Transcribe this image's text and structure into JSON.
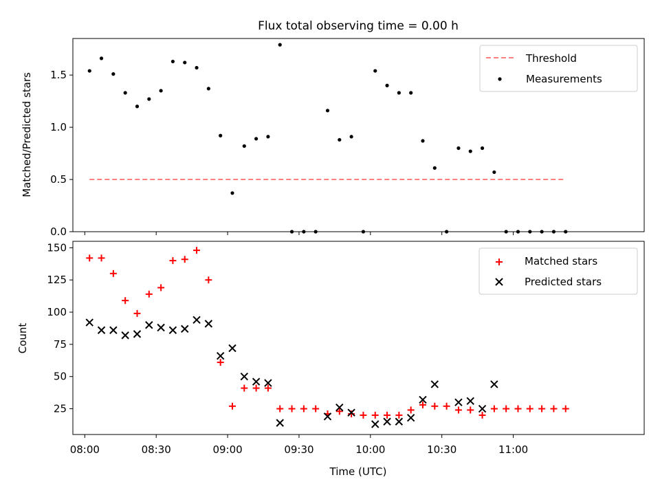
{
  "figure": {
    "title": "Flux total observing time = 0.00 h"
  },
  "chart_data": [
    {
      "type": "scatter",
      "title": "Flux total observing time = 0.00 h",
      "xlabel": "",
      "ylabel": "Matched/Predicted stars",
      "xlim": [
        "07:55",
        "11:55"
      ],
      "ylim": [
        0,
        1.85
      ],
      "yticks": [
        0.0,
        0.5,
        1.0,
        1.5
      ],
      "ytick_labels": [
        "0.0",
        "0.5",
        "1.0",
        "1.5"
      ],
      "legend": {
        "position": "upper right"
      },
      "series": [
        {
          "name": "Threshold",
          "kind": "dashed-line",
          "color": "#ff7f7f",
          "x": [
            "08:02",
            "11:22"
          ],
          "y": [
            0.5,
            0.5
          ]
        },
        {
          "name": "Measurements",
          "kind": "points",
          "color": "#000000",
          "x": [
            "08:02",
            "08:07",
            "08:12",
            "08:17",
            "08:22",
            "08:27",
            "08:32",
            "08:37",
            "08:42",
            "08:47",
            "08:52",
            "08:57",
            "09:02",
            "09:07",
            "09:12",
            "09:17",
            "09:22",
            "09:27",
            "09:32",
            "09:37",
            "09:42",
            "09:47",
            "09:52",
            "09:57",
            "10:02",
            "10:07",
            "10:12",
            "10:17",
            "10:22",
            "10:27",
            "10:32",
            "10:37",
            "10:42",
            "10:47",
            "10:52",
            "10:57",
            "11:02",
            "11:07",
            "11:12",
            "11:17",
            "11:22"
          ],
          "y": [
            1.54,
            1.66,
            1.51,
            1.33,
            1.2,
            1.27,
            1.35,
            1.63,
            1.62,
            1.57,
            1.37,
            0.92,
            0.37,
            0.82,
            0.89,
            0.91,
            1.79,
            0.0,
            0.0,
            0.0,
            1.16,
            0.88,
            0.91,
            0.0,
            1.54,
            1.4,
            1.33,
            1.33,
            0.87,
            0.61,
            0.0,
            0.8,
            0.77,
            0.8,
            0.57,
            0.0,
            0.0,
            0.0,
            0.0,
            0.0,
            0.0
          ]
        }
      ]
    },
    {
      "type": "scatter",
      "title": "",
      "xlabel": "Time (UTC)",
      "ylabel": "Count",
      "xlim": [
        "07:55",
        "11:55"
      ],
      "ylim": [
        5,
        155
      ],
      "yticks": [
        25,
        50,
        75,
        100,
        125,
        150
      ],
      "ytick_labels": [
        "25",
        "50",
        "75",
        "100",
        "125",
        "150"
      ],
      "xticks": [
        "08:00",
        "08:30",
        "09:00",
        "09:30",
        "10:00",
        "10:30",
        "11:00"
      ],
      "xtick_labels": [
        "08:00",
        "08:30",
        "09:00",
        "09:30",
        "10:00",
        "10:30",
        "11:00"
      ],
      "legend": {
        "position": "upper right"
      },
      "series": [
        {
          "name": "Matched stars",
          "marker": "plus",
          "color": "#ff0000",
          "x": [
            "08:02",
            "08:07",
            "08:12",
            "08:17",
            "08:22",
            "08:27",
            "08:32",
            "08:37",
            "08:42",
            "08:47",
            "08:52",
            "08:57",
            "09:02",
            "09:07",
            "09:12",
            "09:17",
            "09:22",
            "09:27",
            "09:32",
            "09:37",
            "09:42",
            "09:47",
            "09:52",
            "09:57",
            "10:02",
            "10:07",
            "10:12",
            "10:17",
            "10:22",
            "10:27",
            "10:32",
            "10:37",
            "10:42",
            "10:47",
            "10:52",
            "10:57",
            "11:02",
            "11:07",
            "11:12",
            "11:17",
            "11:22"
          ],
          "y": [
            142,
            142,
            130,
            109,
            99,
            114,
            119,
            140,
            141,
            148,
            125,
            61,
            27,
            41,
            41,
            41,
            25,
            25,
            25,
            25,
            21,
            23,
            21,
            20,
            20,
            20,
            20,
            24,
            28,
            27,
            27,
            24,
            24,
            20,
            25,
            25,
            25,
            25,
            25,
            25,
            25
          ]
        },
        {
          "name": "Predicted stars",
          "marker": "x",
          "color": "#000000",
          "x": [
            "08:02",
            "08:07",
            "08:12",
            "08:17",
            "08:22",
            "08:27",
            "08:32",
            "08:37",
            "08:42",
            "08:47",
            "08:52",
            "08:57",
            "09:02",
            "09:07",
            "09:12",
            "09:17",
            "09:22",
            "09:42",
            "09:47",
            "09:52",
            "10:02",
            "10:07",
            "10:12",
            "10:17",
            "10:22",
            "10:27",
            "10:37",
            "10:42",
            "10:47",
            "10:52"
          ],
          "y": [
            92,
            86,
            86,
            82,
            83,
            90,
            88,
            86,
            87,
            94,
            91,
            66,
            72,
            50,
            46,
            45,
            14,
            19,
            26,
            22,
            13,
            15,
            15,
            18,
            32,
            44,
            30,
            31,
            25,
            44
          ]
        }
      ]
    }
  ]
}
